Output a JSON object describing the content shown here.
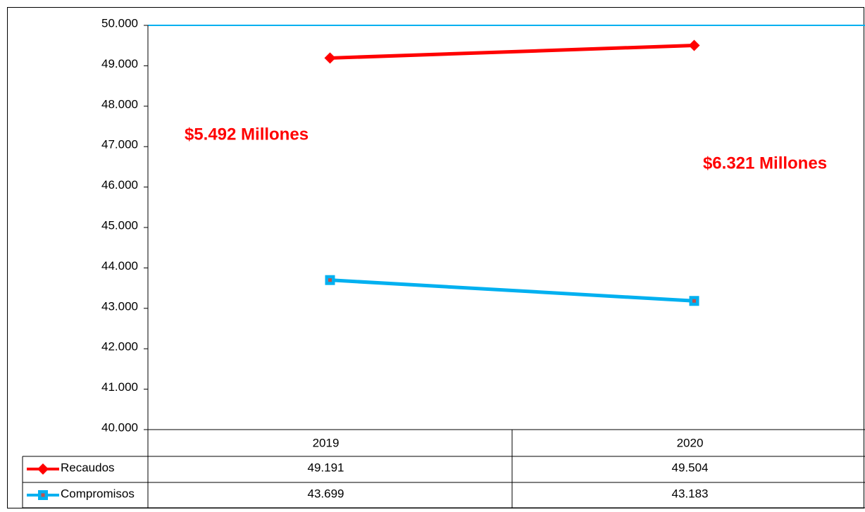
{
  "chart_data": {
    "type": "line",
    "categories": [
      "2019",
      "2020"
    ],
    "series": [
      {
        "name": "Recaudos",
        "color": "#ff0000",
        "marker": "diamond",
        "values": [
          49191,
          49504
        ],
        "value_labels": [
          "49.191",
          "49.504"
        ]
      },
      {
        "name": "Compromisos",
        "color": "#00b0f0",
        "marker": "square",
        "values": [
          43699,
          43183
        ],
        "value_labels": [
          "43.699",
          "43.183"
        ]
      }
    ],
    "annotations": [
      "$5.492 Millones",
      "$6.321 Millones"
    ],
    "ylim": [
      40000,
      50000
    ],
    "yticks": [
      {
        "value": 40000,
        "label": "40.000"
      },
      {
        "value": 41000,
        "label": "41.000"
      },
      {
        "value": 42000,
        "label": "42.000"
      },
      {
        "value": 43000,
        "label": "43.000"
      },
      {
        "value": 44000,
        "label": "44.000"
      },
      {
        "value": 45000,
        "label": "45.000"
      },
      {
        "value": 46000,
        "label": "46.000"
      },
      {
        "value": 47000,
        "label": "47.000"
      },
      {
        "value": 48000,
        "label": "48.000"
      },
      {
        "value": 49000,
        "label": "49.000"
      },
      {
        "value": 50000,
        "label": "50.000"
      }
    ],
    "grid": false
  }
}
